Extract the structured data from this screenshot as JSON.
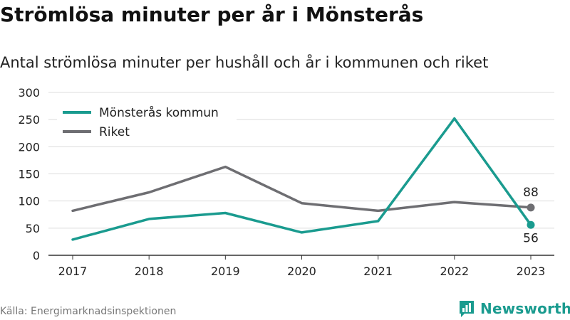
{
  "header": {
    "title": "Strömlösa minuter per år i Mönsterås",
    "subtitle": "Antal strömlösa minuter per hushåll och år i kommunen och riket"
  },
  "footer": {
    "source": "Källa: Energimarknadsinspektionen",
    "brand": "Newsworthy",
    "brand_icon": "bar-chart-logo-icon"
  },
  "colors": {
    "municipality": "#1a9b8f",
    "national": "#6e6e72",
    "grid": "#dddddd",
    "text": "#222222"
  },
  "chart_data": {
    "type": "line",
    "x": [
      "2017",
      "2018",
      "2019",
      "2020",
      "2021",
      "2022",
      "2023"
    ],
    "series": [
      {
        "name": "Mönsterås kommun",
        "values": [
          29,
          67,
          78,
          42,
          63,
          252,
          56
        ]
      },
      {
        "name": "Riket",
        "values": [
          82,
          116,
          163,
          96,
          82,
          98,
          88
        ]
      }
    ],
    "ylim": [
      0,
      300
    ],
    "yticks": [
      "0",
      "50",
      "100",
      "150",
      "200",
      "250",
      "300"
    ],
    "grid": true,
    "legend_position": "top-left",
    "end_labels": [
      "56",
      "88"
    ]
  }
}
